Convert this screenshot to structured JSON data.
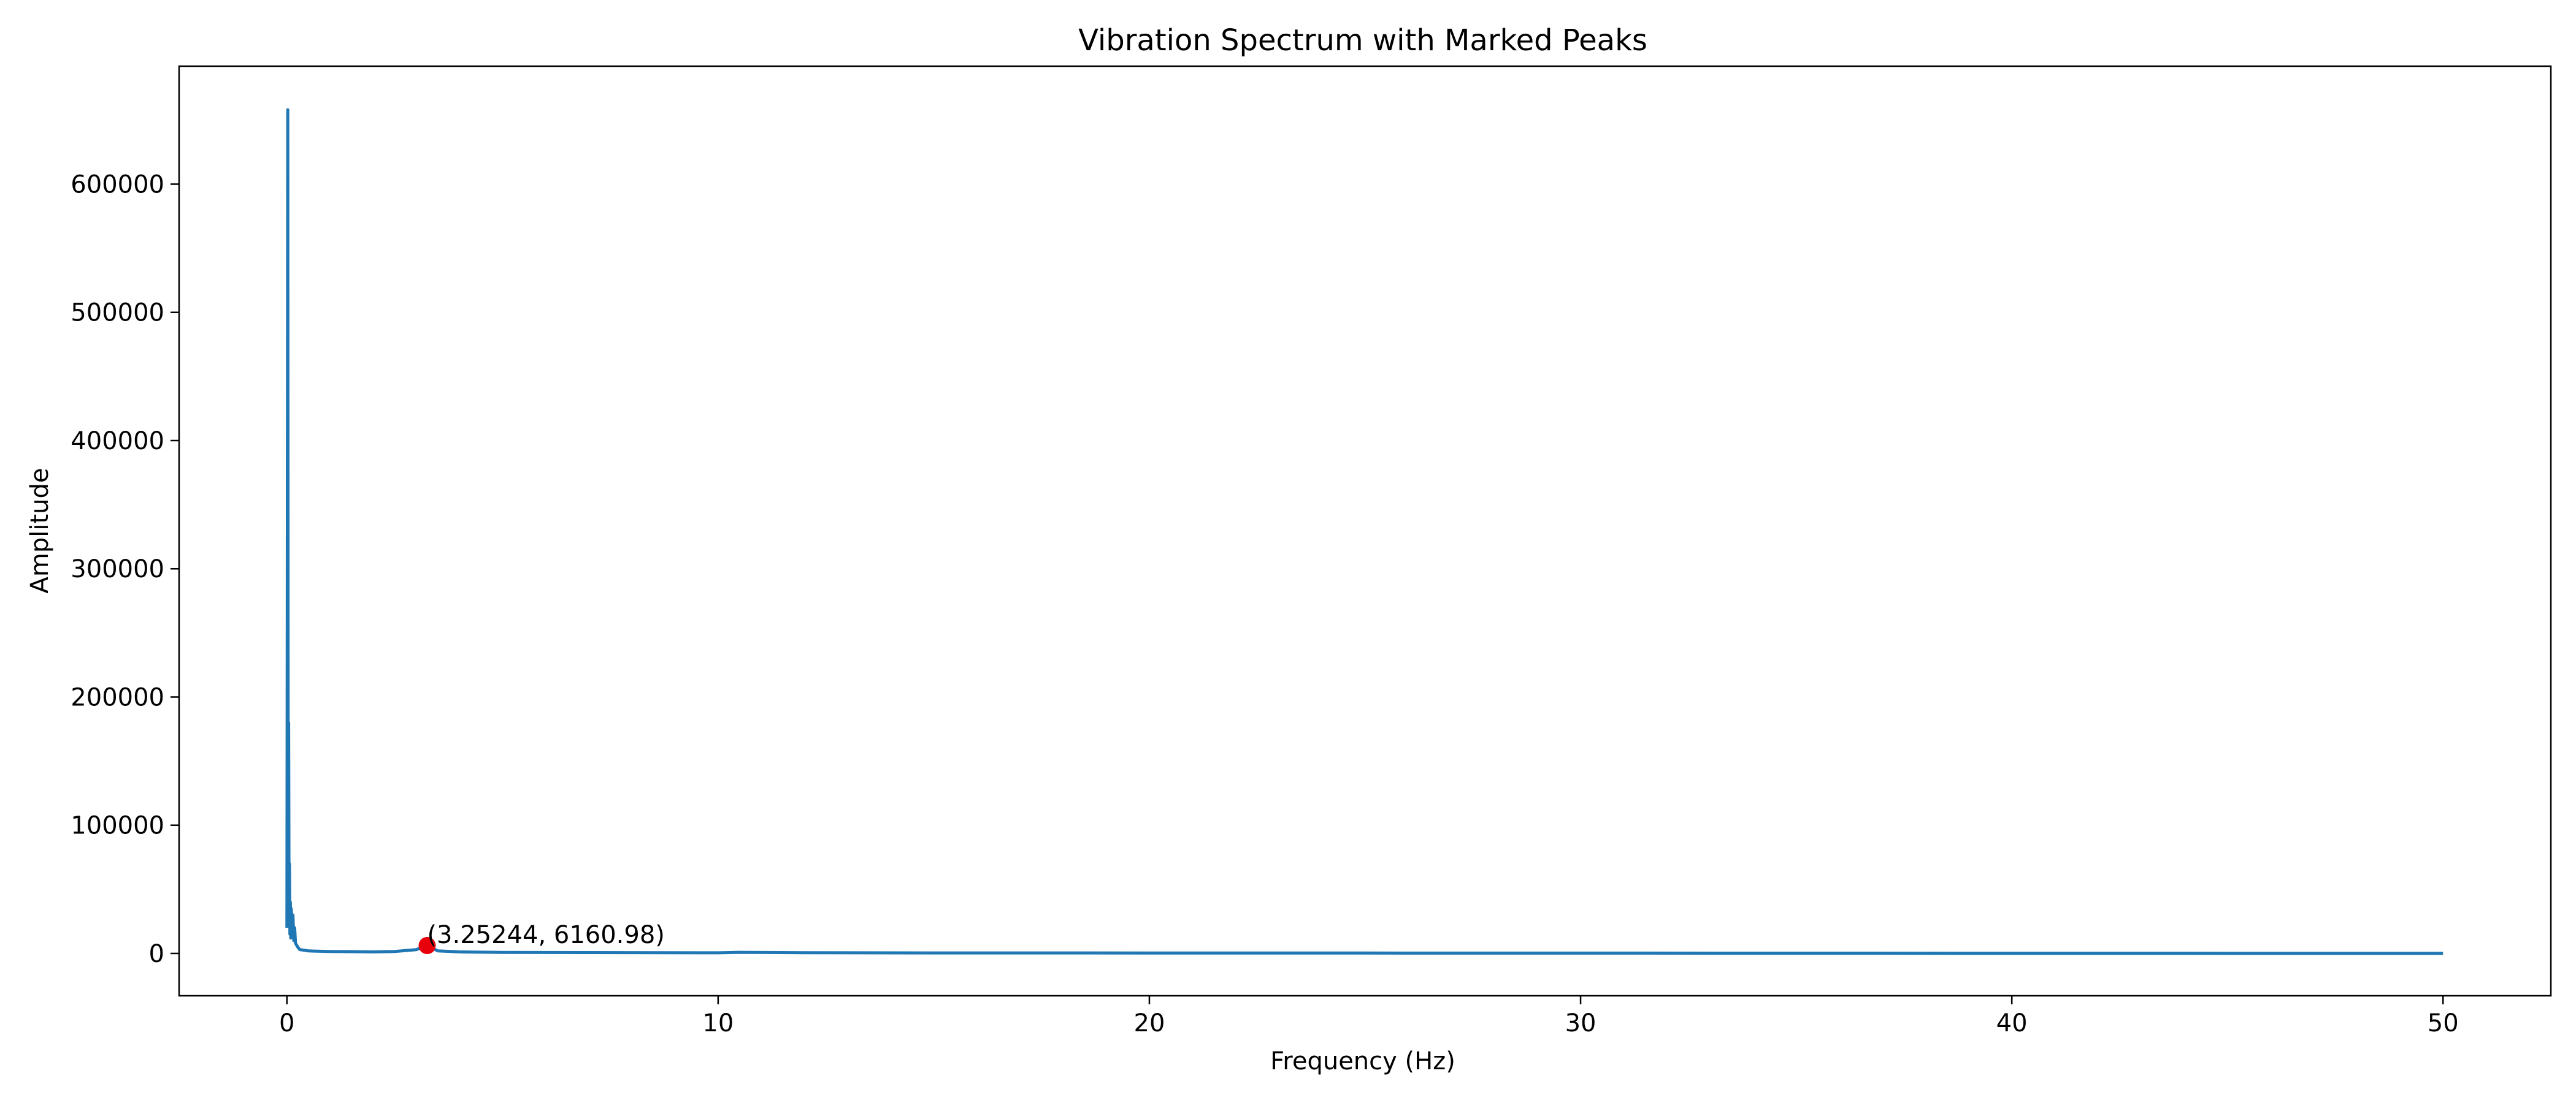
{
  "chart_data": {
    "type": "line",
    "title": "Vibration Spectrum with Marked Peaks",
    "xlabel": "Frequency (Hz)",
    "ylabel": "Amplitude",
    "xlim": [
      -2.5,
      52.5
    ],
    "ylim": [
      -33000,
      692000
    ],
    "xticks": [
      0,
      10,
      20,
      30,
      40,
      50
    ],
    "xtick_labels": [
      "0",
      "10",
      "20",
      "30",
      "40",
      "50"
    ],
    "yticks": [
      0,
      100000,
      200000,
      300000,
      400000,
      500000,
      600000
    ],
    "ytick_labels": [
      "0",
      "100000",
      "200000",
      "300000",
      "400000",
      "500000",
      "600000"
    ],
    "grid": false,
    "legend": "none",
    "colors": {
      "line": "#1f77b4",
      "marker": "#e8000b"
    },
    "series": [
      {
        "x": [
          0,
          0.02,
          0.03,
          0.04,
          0.05,
          0.06,
          0.07,
          0.08,
          0.09,
          0.1,
          0.12,
          0.14,
          0.16,
          0.18,
          0.2,
          0.25,
          0.3,
          0.4,
          0.5,
          0.7,
          1.0,
          1.5,
          2.0,
          2.5,
          3.0,
          3.25,
          3.5,
          4.0,
          5.0,
          7.0,
          10.0,
          10.5,
          12.0,
          15.0,
          20.0,
          25.0,
          30.0,
          35.0,
          40.0,
          45.0,
          50.0
        ],
        "y": [
          20000,
          658000,
          60000,
          180000,
          30000,
          70000,
          15000,
          40000,
          12000,
          35000,
          25000,
          30000,
          10000,
          20000,
          8000,
          5000,
          3000,
          2500,
          2000,
          1800,
          1500,
          1400,
          1200,
          1500,
          3000,
          6161,
          2000,
          1200,
          800,
          700,
          500,
          900,
          600,
          400,
          350,
          300,
          250,
          200,
          150,
          100,
          50
        ]
      }
    ],
    "annotations": [
      {
        "x": 3.25244,
        "y": 6160.98,
        "text": "(3.25244, 6160.98)"
      }
    ]
  }
}
